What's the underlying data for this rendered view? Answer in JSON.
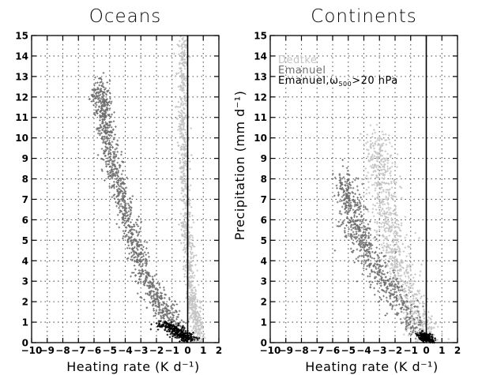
{
  "chart_data": [
    {
      "type": "scatter",
      "title": "Oceans",
      "xlabel": "Heating rate (K d⁻¹)",
      "ylabel": "",
      "xlim": [
        -10,
        2
      ],
      "ylim": [
        0,
        15
      ],
      "xticks": [
        -10,
        -9,
        -8,
        -7,
        -6,
        -5,
        -4,
        -3,
        -2,
        -1,
        0,
        1,
        2
      ],
      "yticks": [
        0,
        1,
        2,
        3,
        4,
        5,
        6,
        7,
        8,
        9,
        10,
        11,
        12,
        13,
        14,
        15
      ],
      "grid": true,
      "series": [
        {
          "color": "#c4c4c4",
          "trend": [
            [
              0.8,
              0
            ],
            [
              0.6,
              1
            ],
            [
              0.3,
              2
            ],
            [
              0.1,
              4
            ],
            [
              -0.1,
              6
            ],
            [
              -0.25,
              9
            ],
            [
              -0.3,
              12
            ],
            [
              -0.3,
              15
            ]
          ],
          "count": 900,
          "spread_x": 0.18,
          "spread_y": 0.35
        },
        {
          "color": "#6e6e6e",
          "trend": [
            [
              -0.4,
              0.6
            ],
            [
              -1.6,
              1.6
            ],
            [
              -2.6,
              3
            ],
            [
              -3.5,
              5
            ],
            [
              -4.2,
              7
            ],
            [
              -4.9,
              9
            ],
            [
              -5.4,
              11
            ],
            [
              -5.7,
              12.5
            ]
          ],
          "count": 1100,
          "spread_x": 0.3,
          "spread_y": 0.3
        },
        {
          "color": "#000000",
          "trend": [
            [
              0.3,
              0.1
            ],
            [
              -0.3,
              0.3
            ],
            [
              -0.8,
              0.6
            ],
            [
              -1.6,
              0.9
            ]
          ],
          "count": 280,
          "spread_x": 0.3,
          "spread_y": 0.12
        }
      ]
    },
    {
      "type": "scatter",
      "title": "Continents",
      "xlabel": "Heating rate (K d⁻¹)",
      "ylabel": "Precipitation (mm d⁻¹)",
      "xlim": [
        -10,
        2
      ],
      "ylim": [
        0,
        15
      ],
      "xticks": [
        -10,
        -9,
        -8,
        -7,
        -6,
        -5,
        -4,
        -3,
        -2,
        -1,
        0,
        1,
        2
      ],
      "yticks": [
        0,
        1,
        2,
        3,
        4,
        5,
        6,
        7,
        8,
        9,
        10,
        11,
        12,
        13,
        14,
        15
      ],
      "grid": true,
      "legend": {
        "placement": "top-left",
        "entries": [
          {
            "text": "Dedtke",
            "color": "#c4c4c4"
          },
          {
            "text": "Emanuel",
            "color": "#6e6e6e"
          },
          {
            "main": "Emanuel,ω",
            "sub": "500",
            "rest": ">20 hPa",
            "color": "#000000"
          }
        ]
      },
      "series": [
        {
          "color": "#c4c4c4",
          "trend": [
            [
              0.3,
              0
            ],
            [
              -0.4,
              1
            ],
            [
              -1.2,
              2.5
            ],
            [
              -1.9,
              4
            ],
            [
              -2.5,
              6
            ],
            [
              -2.9,
              8
            ],
            [
              -3.2,
              10
            ]
          ],
          "count": 900,
          "spread_x": 0.45,
          "spread_y": 0.4
        },
        {
          "color": "#6e6e6e",
          "trend": [
            [
              -0.5,
              0.6
            ],
            [
              -1.8,
              2
            ],
            [
              -3.2,
              3.5
            ],
            [
              -4.2,
              5
            ],
            [
              -4.8,
              6.5
            ],
            [
              -5.2,
              8
            ]
          ],
          "count": 700,
          "spread_x": 0.4,
          "spread_y": 0.35
        },
        {
          "color": "#000000",
          "trend": [
            [
              0.4,
              0.05
            ],
            [
              0,
              0.2
            ],
            [
              -0.3,
              0.4
            ]
          ],
          "count": 200,
          "spread_x": 0.2,
          "spread_y": 0.08
        }
      ]
    }
  ]
}
